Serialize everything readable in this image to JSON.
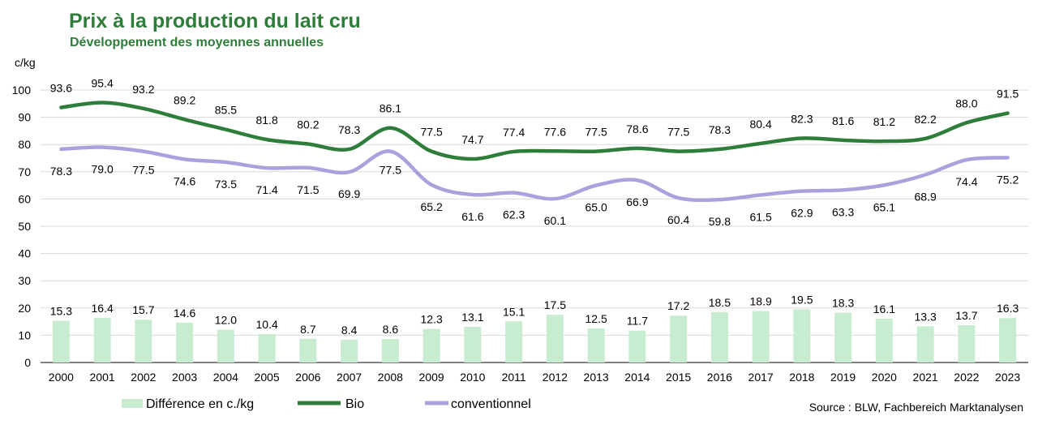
{
  "chart_data": {
    "type": "bar",
    "title": "Prix à la production du lait cru",
    "subtitle": "Développement des moyennes annuelles",
    "ylabel": "c/kg",
    "ylim": [
      0,
      100
    ],
    "yticks": [
      0,
      10,
      20,
      30,
      40,
      50,
      60,
      70,
      80,
      90,
      100
    ],
    "categories": [
      "2000",
      "2001",
      "2002",
      "2003",
      "2004",
      "2005",
      "2006",
      "2007",
      "2008",
      "2009",
      "2010",
      "2011",
      "2012",
      "2013",
      "2014",
      "2015",
      "2016",
      "2017",
      "2018",
      "2019",
      "2020",
      "2021",
      "2022",
      "2023"
    ],
    "series": [
      {
        "name": "Différence en c./kg",
        "kind": "bar",
        "color": "#c8ecd0",
        "values": [
          15.3,
          16.4,
          15.7,
          14.6,
          12.0,
          10.4,
          8.7,
          8.4,
          8.6,
          12.3,
          13.1,
          15.1,
          17.5,
          12.5,
          11.7,
          17.2,
          18.5,
          18.9,
          19.5,
          18.3,
          16.1,
          13.3,
          13.7,
          16.3
        ],
        "labels": [
          "15.3",
          "16.4",
          "15.7",
          "14.6",
          "12.0",
          "10.4",
          "8.7",
          "8.4",
          "8.6",
          "12.3",
          "13.1",
          "15.1",
          "17.5",
          "12.5",
          "11.7",
          "17.2",
          "18.5",
          "18.9",
          "19.5",
          "18.3",
          "16.1",
          "13.3",
          "13.7",
          "16.3"
        ]
      },
      {
        "name": "Bio",
        "kind": "line",
        "color": "#2e7d3a",
        "values": [
          93.6,
          95.4,
          93.2,
          89.2,
          85.5,
          81.8,
          80.2,
          78.3,
          86.1,
          77.5,
          74.7,
          77.4,
          77.6,
          77.5,
          78.6,
          77.5,
          78.3,
          80.4,
          82.3,
          81.6,
          81.2,
          82.2,
          88.0,
          91.5
        ],
        "labels": [
          "93.6",
          "95.4",
          "93.2",
          "89.2",
          "85.5",
          "81.8",
          "80.2",
          "78.3",
          "86.1",
          "77.5",
          "74.7",
          "77.4",
          "77.6",
          "77.5",
          "78.6",
          "77.5",
          "78.3",
          "80.4",
          "82.3",
          "81.6",
          "81.2",
          "82.2",
          "88.0",
          "91.5"
        ]
      },
      {
        "name": "conventionnel",
        "kind": "line",
        "color": "#a9a2dc",
        "values": [
          78.3,
          79.0,
          77.5,
          74.6,
          73.5,
          71.4,
          71.5,
          69.9,
          77.5,
          65.2,
          61.6,
          62.3,
          60.1,
          65.0,
          66.9,
          60.4,
          59.8,
          61.5,
          62.9,
          63.3,
          65.1,
          68.9,
          74.4,
          75.2
        ],
        "labels": [
          "78.3",
          "79.0",
          "77.5",
          "74.6",
          "73.5",
          "71.4",
          "71.5",
          "69.9",
          "77.5",
          "65.2",
          "61.6",
          "62.3",
          "60.1",
          "65.0",
          "66.9",
          "60.4",
          "59.8",
          "61.5",
          "62.9",
          "63.3",
          "65.1",
          "68.9",
          "74.4",
          "75.2"
        ]
      }
    ],
    "legend": [
      "Différence en c./kg",
      "Bio",
      "conventionnel"
    ],
    "source": "Source : BLW, Fachbereich Marktanalysen",
    "grid": true
  }
}
